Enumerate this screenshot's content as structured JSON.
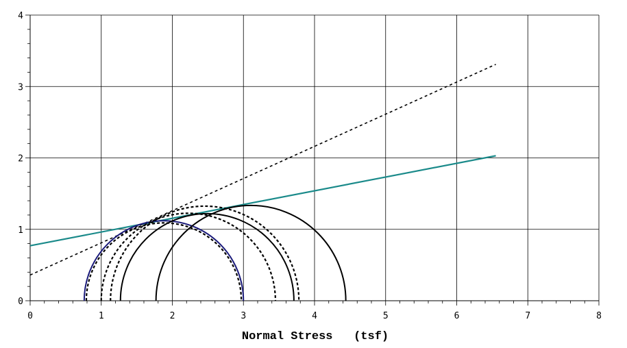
{
  "chart_data": {
    "type": "line",
    "title": "",
    "xlabel": "Normal Stress   (tsf)",
    "ylabel": "",
    "xlim": [
      0,
      8
    ],
    "ylim": [
      0,
      4
    ],
    "x_ticks": [
      "0",
      "1",
      "2",
      "3",
      "4",
      "5",
      "6",
      "7",
      "8"
    ],
    "y_ticks": [
      "0",
      "1",
      "2",
      "3",
      "4"
    ],
    "grid": true,
    "legend": "none",
    "circles": [
      {
        "sigma3": 0.76,
        "sigma1": 3.0,
        "style": "solid",
        "color": "#1a1a7a"
      },
      {
        "sigma3": 0.79,
        "sigma1": 2.97,
        "style": "dashed",
        "color": "#000000"
      },
      {
        "sigma3": 1.0,
        "sigma1": 3.45,
        "style": "dashed",
        "color": "#000000"
      },
      {
        "sigma3": 1.13,
        "sigma1": 3.78,
        "style": "dashed",
        "color": "#000000"
      },
      {
        "sigma3": 1.27,
        "sigma1": 3.71,
        "style": "solid",
        "color": "#000000"
      },
      {
        "sigma3": 1.77,
        "sigma1": 4.44,
        "style": "solid",
        "color": "#000000"
      }
    ],
    "envelopes": [
      {
        "style": "solid",
        "color": "#1a8a8a",
        "x": [
          0,
          6.55
        ],
        "y": [
          0.77,
          2.03
        ]
      },
      {
        "style": "dashed",
        "color": "#000000",
        "x": [
          0,
          6.55
        ],
        "y": [
          0.36,
          3.31
        ]
      }
    ]
  }
}
